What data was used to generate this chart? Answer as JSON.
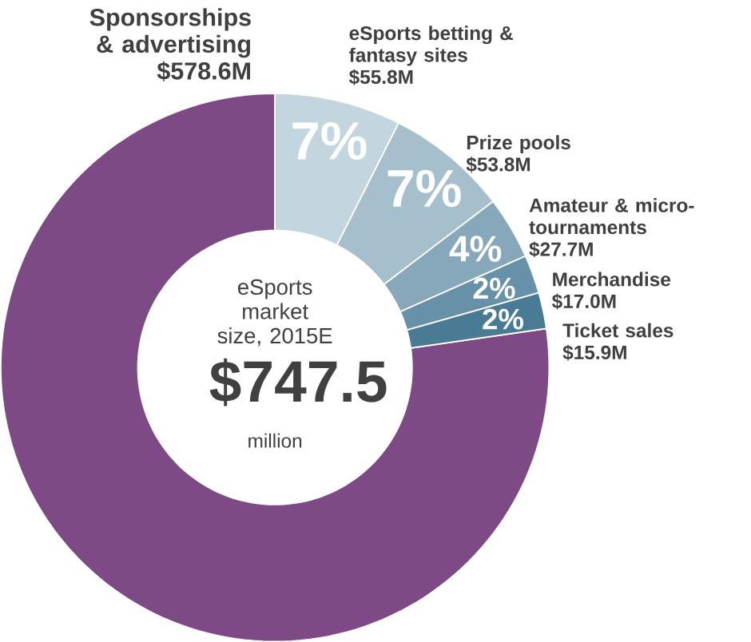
{
  "chart_data": {
    "type": "donut",
    "categories": [
      "Sponsorships & advertising",
      "eSports betting & fantasy sites",
      "Prize pools",
      "Amateur & micro-tournaments",
      "Merchandise",
      "Ticket sales"
    ],
    "values": [
      578.6,
      55.8,
      53.8,
      27.7,
      17.0,
      15.9
    ],
    "colors": [
      "#7e4a85",
      "#c3d5df",
      "#a6bfcd",
      "#87a8bb",
      "#6691a8",
      "#4a7b95"
    ],
    "value_labels": [
      "$578.6M",
      "$55.8M",
      "$53.8M",
      "$27.7M",
      "$17.0M",
      "$15.9M"
    ],
    "annotations": [
      "eSports market size, 2015E",
      "$747.5",
      "million",
      {
        "text": "7%",
        "x": "eSports betting & fantasy sites"
      },
      {
        "text": "7%",
        "x": "Prize pools"
      },
      {
        "text": "4%",
        "x": "Amateur & micro-tournaments"
      },
      {
        "text": "2%",
        "x": "Merchandise"
      },
      {
        "text": "2%",
        "x": "Ticket sales"
      }
    ]
  }
}
